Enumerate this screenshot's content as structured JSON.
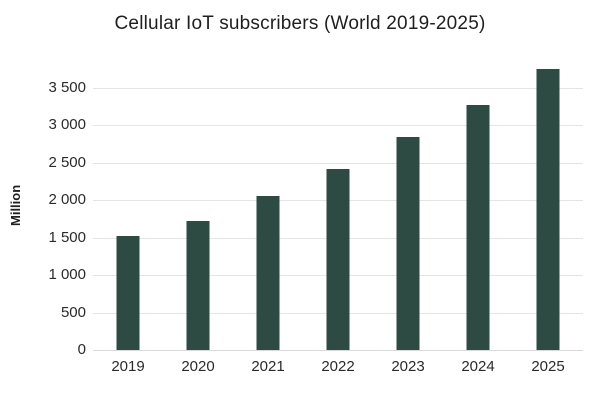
{
  "chart_data": {
    "type": "bar",
    "title": "Cellular IoT subscribers (World 2019-2025)",
    "ylabel": "Million",
    "xlabel": "",
    "categories": [
      "2019",
      "2020",
      "2021",
      "2022",
      "2023",
      "2024",
      "2025"
    ],
    "values": [
      1530,
      1730,
      2060,
      2420,
      2850,
      3280,
      3750
    ],
    "ylim": [
      0,
      3875
    ],
    "yticks": [
      {
        "value": 0,
        "label": "0"
      },
      {
        "value": 500,
        "label": "500"
      },
      {
        "value": 1000,
        "label": "1 000"
      },
      {
        "value": 1500,
        "label": "1 500"
      },
      {
        "value": 2000,
        "label": "2 000"
      },
      {
        "value": 2500,
        "label": "2 500"
      },
      {
        "value": 3000,
        "label": "3 000"
      },
      {
        "value": 3500,
        "label": "3 500"
      }
    ],
    "grid": true,
    "legend": "none",
    "colors": {
      "bar": "#2d4a43",
      "gridline": "#e4e4e4",
      "baseline": "#d9d9d9",
      "text": "#1f1f1f",
      "background": "#ffffff"
    }
  }
}
